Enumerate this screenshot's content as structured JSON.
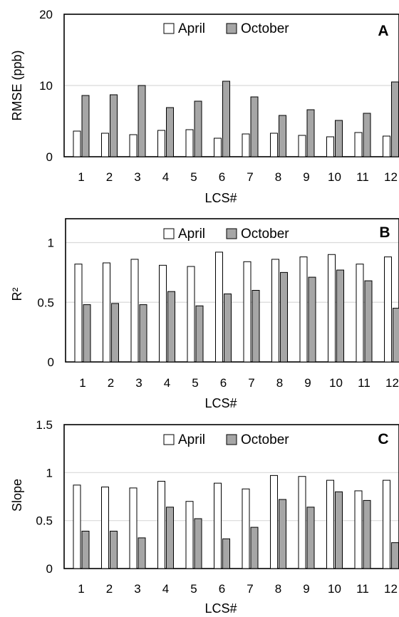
{
  "chart_data": [
    {
      "type": "bar",
      "panel_label": "A",
      "categories": [
        "1",
        "2",
        "3",
        "4",
        "5",
        "6",
        "7",
        "8",
        "9",
        "10",
        "11",
        "12"
      ],
      "series": [
        {
          "name": "April",
          "values": [
            3.6,
            3.3,
            3.1,
            3.7,
            3.8,
            2.6,
            3.2,
            3.3,
            3.0,
            2.8,
            3.4,
            2.9
          ],
          "color": "#ffffff"
        },
        {
          "name": "October",
          "values": [
            8.6,
            8.7,
            10.0,
            6.9,
            7.8,
            10.6,
            8.4,
            5.8,
            6.6,
            5.1,
            6.1,
            10.5
          ],
          "color": "#a6a6a6"
        }
      ],
      "xlabel": "LCS#",
      "ylabel": "RMSE (ppb)",
      "ylim": [
        0,
        20
      ],
      "yticks": [
        "0",
        "10",
        "20"
      ],
      "grid": true,
      "legend": "top-center"
    },
    {
      "type": "bar",
      "panel_label": "B",
      "categories": [
        "1",
        "2",
        "3",
        "4",
        "5",
        "6",
        "7",
        "8",
        "9",
        "10",
        "11",
        "12"
      ],
      "series": [
        {
          "name": "April",
          "values": [
            0.82,
            0.83,
            0.86,
            0.81,
            0.8,
            0.92,
            0.84,
            0.86,
            0.88,
            0.9,
            0.82,
            0.88
          ],
          "color": "#ffffff"
        },
        {
          "name": "October",
          "values": [
            0.48,
            0.49,
            0.48,
            0.59,
            0.47,
            0.57,
            0.6,
            0.75,
            0.71,
            0.77,
            0.68,
            0.45
          ],
          "color": "#a6a6a6"
        }
      ],
      "xlabel": "LCS#",
      "ylabel": "R²",
      "ylim": [
        0,
        1.2
      ],
      "yticks": [
        "0",
        "0.5",
        "1"
      ],
      "grid": true,
      "legend": "top-center"
    },
    {
      "type": "bar",
      "panel_label": "C",
      "categories": [
        "1",
        "2",
        "3",
        "4",
        "5",
        "6",
        "7",
        "8",
        "9",
        "10",
        "11",
        "12"
      ],
      "series": [
        {
          "name": "April",
          "values": [
            0.87,
            0.85,
            0.84,
            0.91,
            0.7,
            0.89,
            0.83,
            0.97,
            0.96,
            0.92,
            0.81,
            0.92
          ],
          "color": "#ffffff"
        },
        {
          "name": "October",
          "values": [
            0.39,
            0.39,
            0.32,
            0.64,
            0.52,
            0.31,
            0.43,
            0.72,
            0.64,
            0.8,
            0.71,
            0.27
          ],
          "color": "#a6a6a6"
        }
      ],
      "xlabel": "LCS#",
      "ylabel": "Slope",
      "ylim": [
        0,
        1.5
      ],
      "yticks": [
        "0",
        "0.5",
        "1",
        "1.5"
      ],
      "grid": true,
      "legend": "top-center"
    }
  ]
}
